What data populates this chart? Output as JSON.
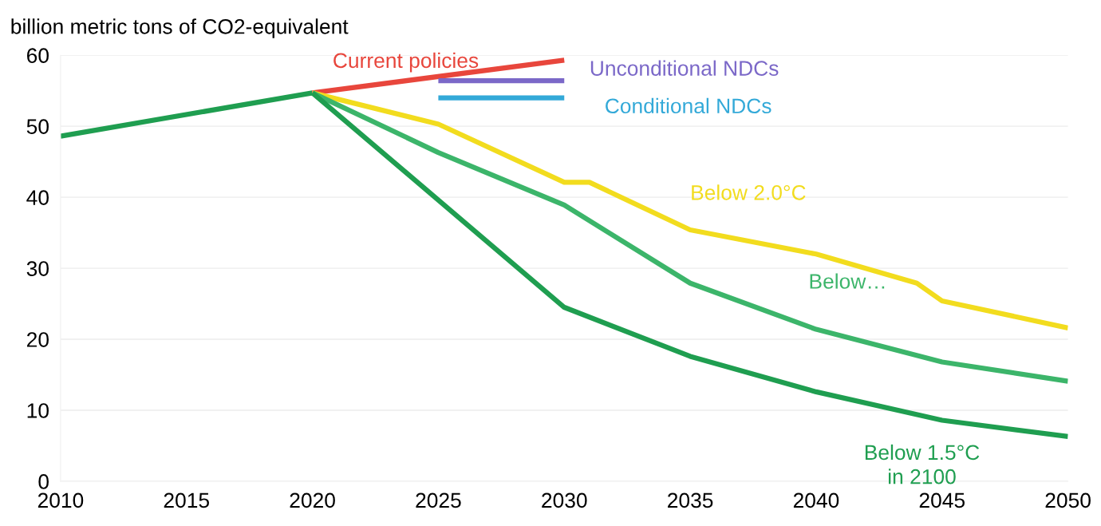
{
  "chart_data": {
    "type": "line",
    "ylabel": "billion metric tons of CO2-equivalent",
    "xlim": [
      2010,
      2050
    ],
    "xticks": [
      2010,
      2015,
      2020,
      2025,
      2030,
      2035,
      2040,
      2045,
      2050
    ],
    "ylim": [
      0,
      60
    ],
    "yticks": [
      0,
      10,
      20,
      30,
      40,
      50,
      60
    ],
    "grid": "y",
    "legend": false,
    "marker": "none",
    "line_style": "solid",
    "series": [
      {
        "color": "#1f9e50",
        "x": [
          2010,
          2020
        ],
        "values": [
          48.6,
          54.7
        ]
      },
      {
        "name": "Current policies",
        "color": "#e8463c",
        "x": [
          2020,
          2030
        ],
        "values": [
          54.7,
          59.3
        ]
      },
      {
        "name": "Unconditional NDCs",
        "color": "#7b68c8",
        "x": [
          2025,
          2030
        ],
        "values": [
          56.4,
          56.4
        ]
      },
      {
        "name": "Conditional NDCs",
        "color": "#33a9d8",
        "x": [
          2025,
          2030
        ],
        "values": [
          54.0,
          54.0
        ]
      },
      {
        "name": "Below 2.0°C",
        "color": "#f2dc1e",
        "x": [
          2020,
          2025,
          2030,
          2031,
          2035,
          2040,
          2044,
          2045,
          2050
        ],
        "values": [
          54.7,
          50.3,
          42.1,
          42.1,
          35.4,
          32.0,
          27.9,
          25.4,
          21.6
        ]
      },
      {
        "name": "Below…",
        "color": "#3cb56a",
        "x": [
          2020,
          2025,
          2030,
          2035,
          2040,
          2045,
          2050
        ],
        "values": [
          54.7,
          46.3,
          38.9,
          27.9,
          21.4,
          16.8,
          14.1
        ]
      },
      {
        "name": "Below 1.5°C\nin 2100",
        "color": "#1f9e50",
        "x": [
          2020,
          2030,
          2035,
          2040,
          2045,
          2050
        ],
        "values": [
          54.7,
          24.5,
          17.6,
          12.6,
          8.6,
          6.3
        ]
      }
    ]
  }
}
